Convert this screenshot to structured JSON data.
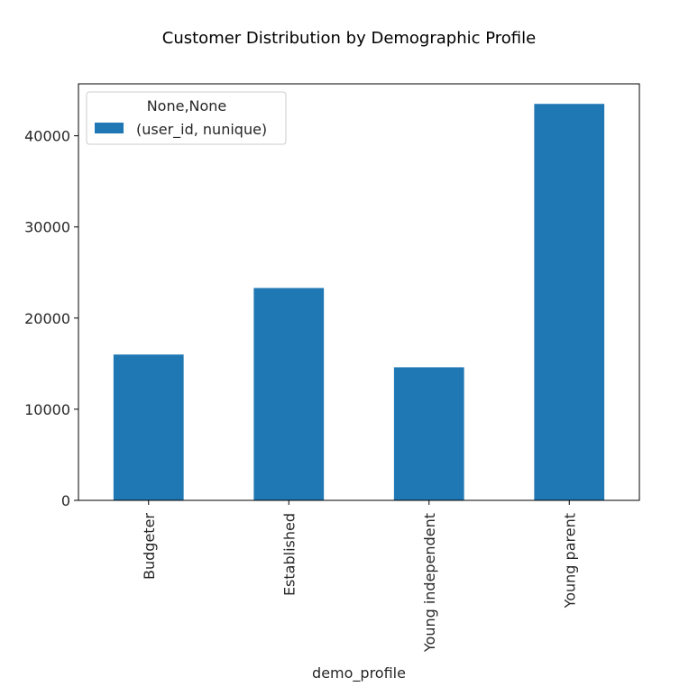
{
  "chart_data": {
    "type": "bar",
    "title": "Customer Distribution by Demographic Profile",
    "xlabel": "demo_profile",
    "ylabel": "",
    "categories": [
      "Budgeter",
      "Established",
      "Young independent",
      "Young parent"
    ],
    "series": [
      {
        "name": "(user_id, nunique)",
        "values": [
          16000,
          23300,
          14600,
          43500
        ],
        "color": "#1f77b4"
      }
    ],
    "legend_title": "None,None",
    "legend_position": "top-left",
    "ylim": [
      0,
      45700
    ],
    "yticks": [
      0,
      10000,
      20000,
      30000,
      40000
    ],
    "ytick_labels": [
      "0",
      "10000",
      "20000",
      "30000",
      "40000"
    ],
    "grid": false,
    "x_tick_rotation": "vertical"
  }
}
